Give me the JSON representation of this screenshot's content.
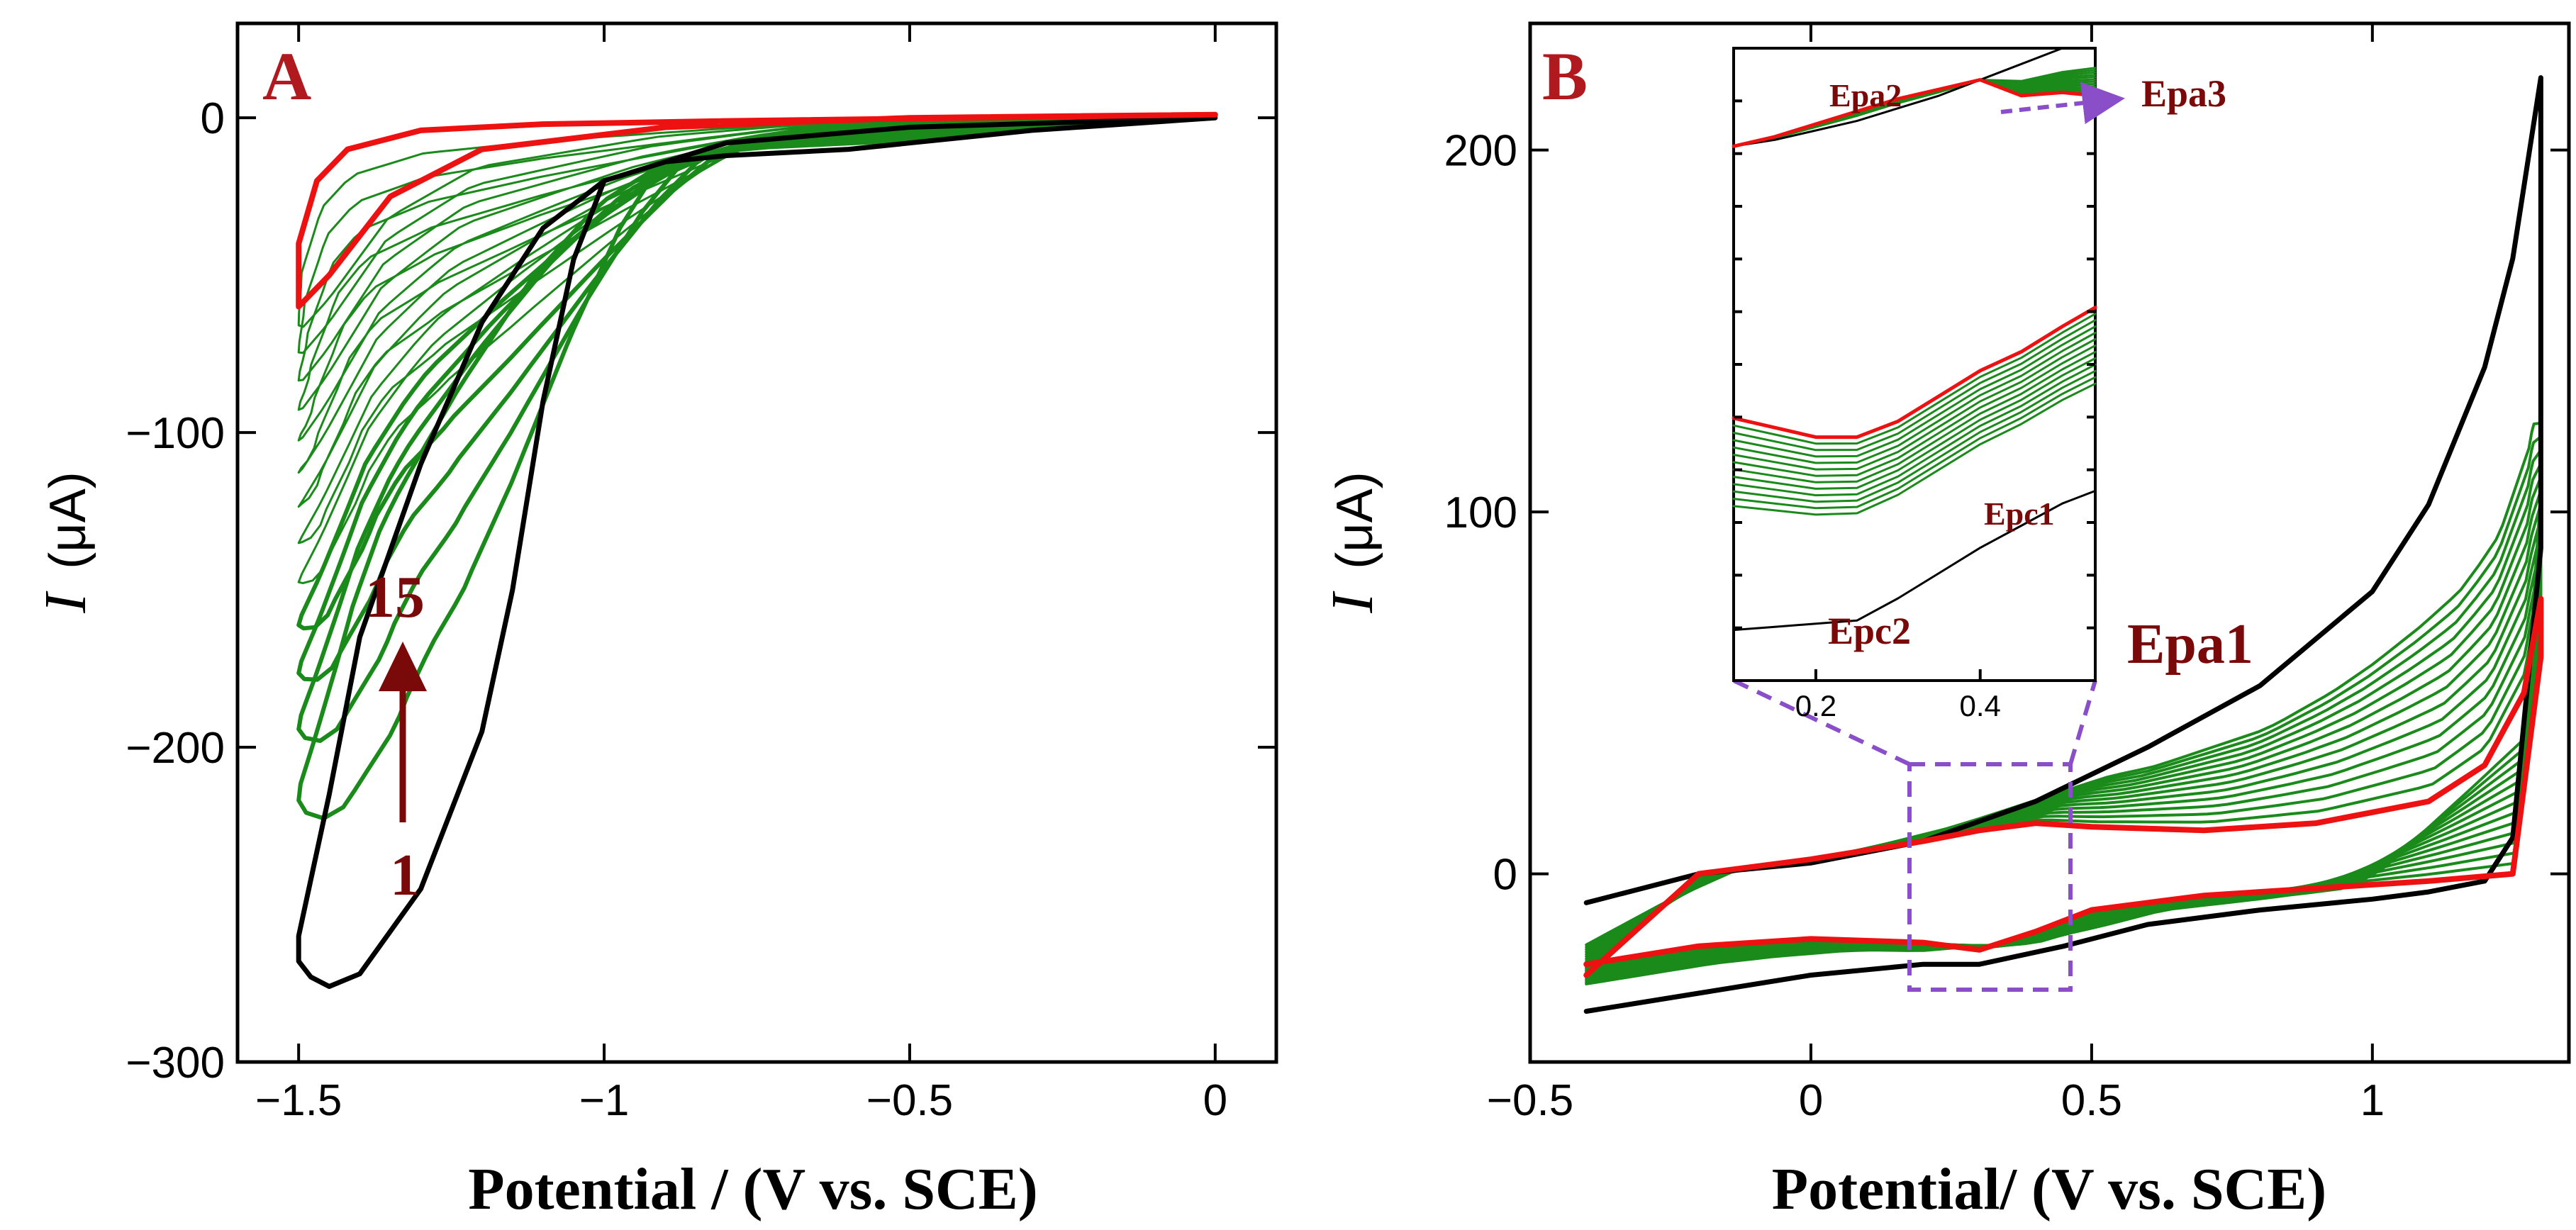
{
  "figure": {
    "colors": {
      "black": "#000000",
      "green": "#1a8a1a",
      "red": "#ee1111",
      "annot": "#7a0a0a",
      "box": "#8a4fc8"
    }
  },
  "chart_data": [
    {
      "type": "line",
      "panel": "A",
      "xlabel": "Potential / (V vs. SCE)",
      "ylabel": "I (μA)",
      "xlim": [
        -1.6,
        0.1
      ],
      "ylim": [
        -300,
        30
      ],
      "xticks": [
        -1.5,
        -1,
        -0.5,
        0
      ],
      "xtick_labels": [
        "−1.5",
        "−1",
        "−0.5",
        "0"
      ],
      "yticks": [
        0,
        -100,
        -200,
        -300
      ],
      "ytick_labels": [
        "0",
        "−100",
        "−200",
        "−300"
      ],
      "annotations": {
        "cycle_last": "15",
        "cycle_first": "1"
      },
      "series": [
        {
          "name": "cycle 1",
          "color": "black",
          "x": [
            0.0,
            -0.3,
            -0.6,
            -0.8,
            -0.9,
            -1.0,
            -1.05,
            -1.1,
            -1.15,
            -1.2,
            -1.3,
            -1.4,
            -1.45,
            -1.48,
            -1.5,
            -1.5,
            -1.45,
            -1.4,
            -1.3,
            -1.2,
            -1.1,
            -1.0,
            -0.8,
            -0.5,
            0.0
          ],
          "y": [
            0,
            -4,
            -10,
            -12,
            -14,
            -20,
            -45,
            -90,
            -150,
            -195,
            -245,
            -272,
            -276,
            -273,
            -268,
            -260,
            -215,
            -165,
            -110,
            -65,
            -35,
            -20,
            -8,
            -3,
            0
          ]
        },
        {
          "name": "cycle 15",
          "color": "red",
          "x": [
            0.0,
            -0.4,
            -0.8,
            -1.1,
            -1.3,
            -1.42,
            -1.47,
            -1.5,
            -1.5,
            -1.45,
            -1.35,
            -1.2,
            -0.9,
            -0.5,
            0.0
          ],
          "y": [
            1,
            0,
            -1,
            -2,
            -4,
            -10,
            -20,
            -40,
            -60,
            -50,
            -25,
            -10,
            -3,
            0,
            1
          ]
        }
      ]
    },
    {
      "type": "line",
      "panel": "B",
      "xlabel": "Potential/ (V vs. SCE)",
      "ylabel": "I (μA)",
      "xlim": [
        -0.5,
        1.35
      ],
      "ylim": [
        -52,
        235
      ],
      "xticks": [
        -0.5,
        0,
        0.5,
        1
      ],
      "xtick_labels": [
        "−0.5",
        "0",
        "0.5",
        "1"
      ],
      "yticks": [
        0,
        100,
        200
      ],
      "ytick_labels": [
        "0",
        "100",
        "200"
      ],
      "annotations": {
        "peak1": "Epa1",
        "peak2": "Epa2",
        "peak3": "Epa3",
        "cpeak1": "Epc1",
        "cpeak2": "Epc2"
      },
      "inset": {
        "xticks": [
          0.2,
          0.4
        ],
        "xtick_labels": [
          "0.2",
          "0.4"
        ],
        "xlim": [
          0.1,
          0.54
        ]
      },
      "series": [
        {
          "name": "cycle 1",
          "color": "black",
          "x": [
            -0.4,
            -0.2,
            0.0,
            0.2,
            0.4,
            0.6,
            0.8,
            1.0,
            1.1,
            1.2,
            1.25,
            1.3,
            1.3,
            1.25,
            1.2,
            1.1,
            1.0,
            0.8,
            0.6,
            0.45,
            0.3,
            0.2,
            0.0,
            -0.2,
            -0.4
          ],
          "y": [
            -8,
            0,
            3,
            9,
            20,
            35,
            52,
            78,
            102,
            140,
            170,
            220,
            90,
            10,
            -2,
            -5,
            -7,
            -10,
            -14,
            -20,
            -25,
            -25,
            -28,
            -33,
            -38
          ]
        },
        {
          "name": "cycle 15",
          "color": "red",
          "x": [
            -0.4,
            -0.2,
            0.0,
            0.2,
            0.3,
            0.4,
            0.5,
            0.7,
            0.9,
            1.1,
            1.2,
            1.27,
            1.3,
            1.3,
            1.25,
            1.1,
            0.9,
            0.7,
            0.5,
            0.4,
            0.3,
            0.2,
            0.0,
            -0.2,
            -0.4
          ],
          "y": [
            -28,
            0,
            4,
            9,
            12,
            14,
            13,
            12,
            14,
            20,
            30,
            50,
            76,
            60,
            0,
            -2,
            -4,
            -6,
            -10,
            -16,
            -21,
            -19,
            -18,
            -20,
            -25
          ]
        }
      ]
    }
  ]
}
